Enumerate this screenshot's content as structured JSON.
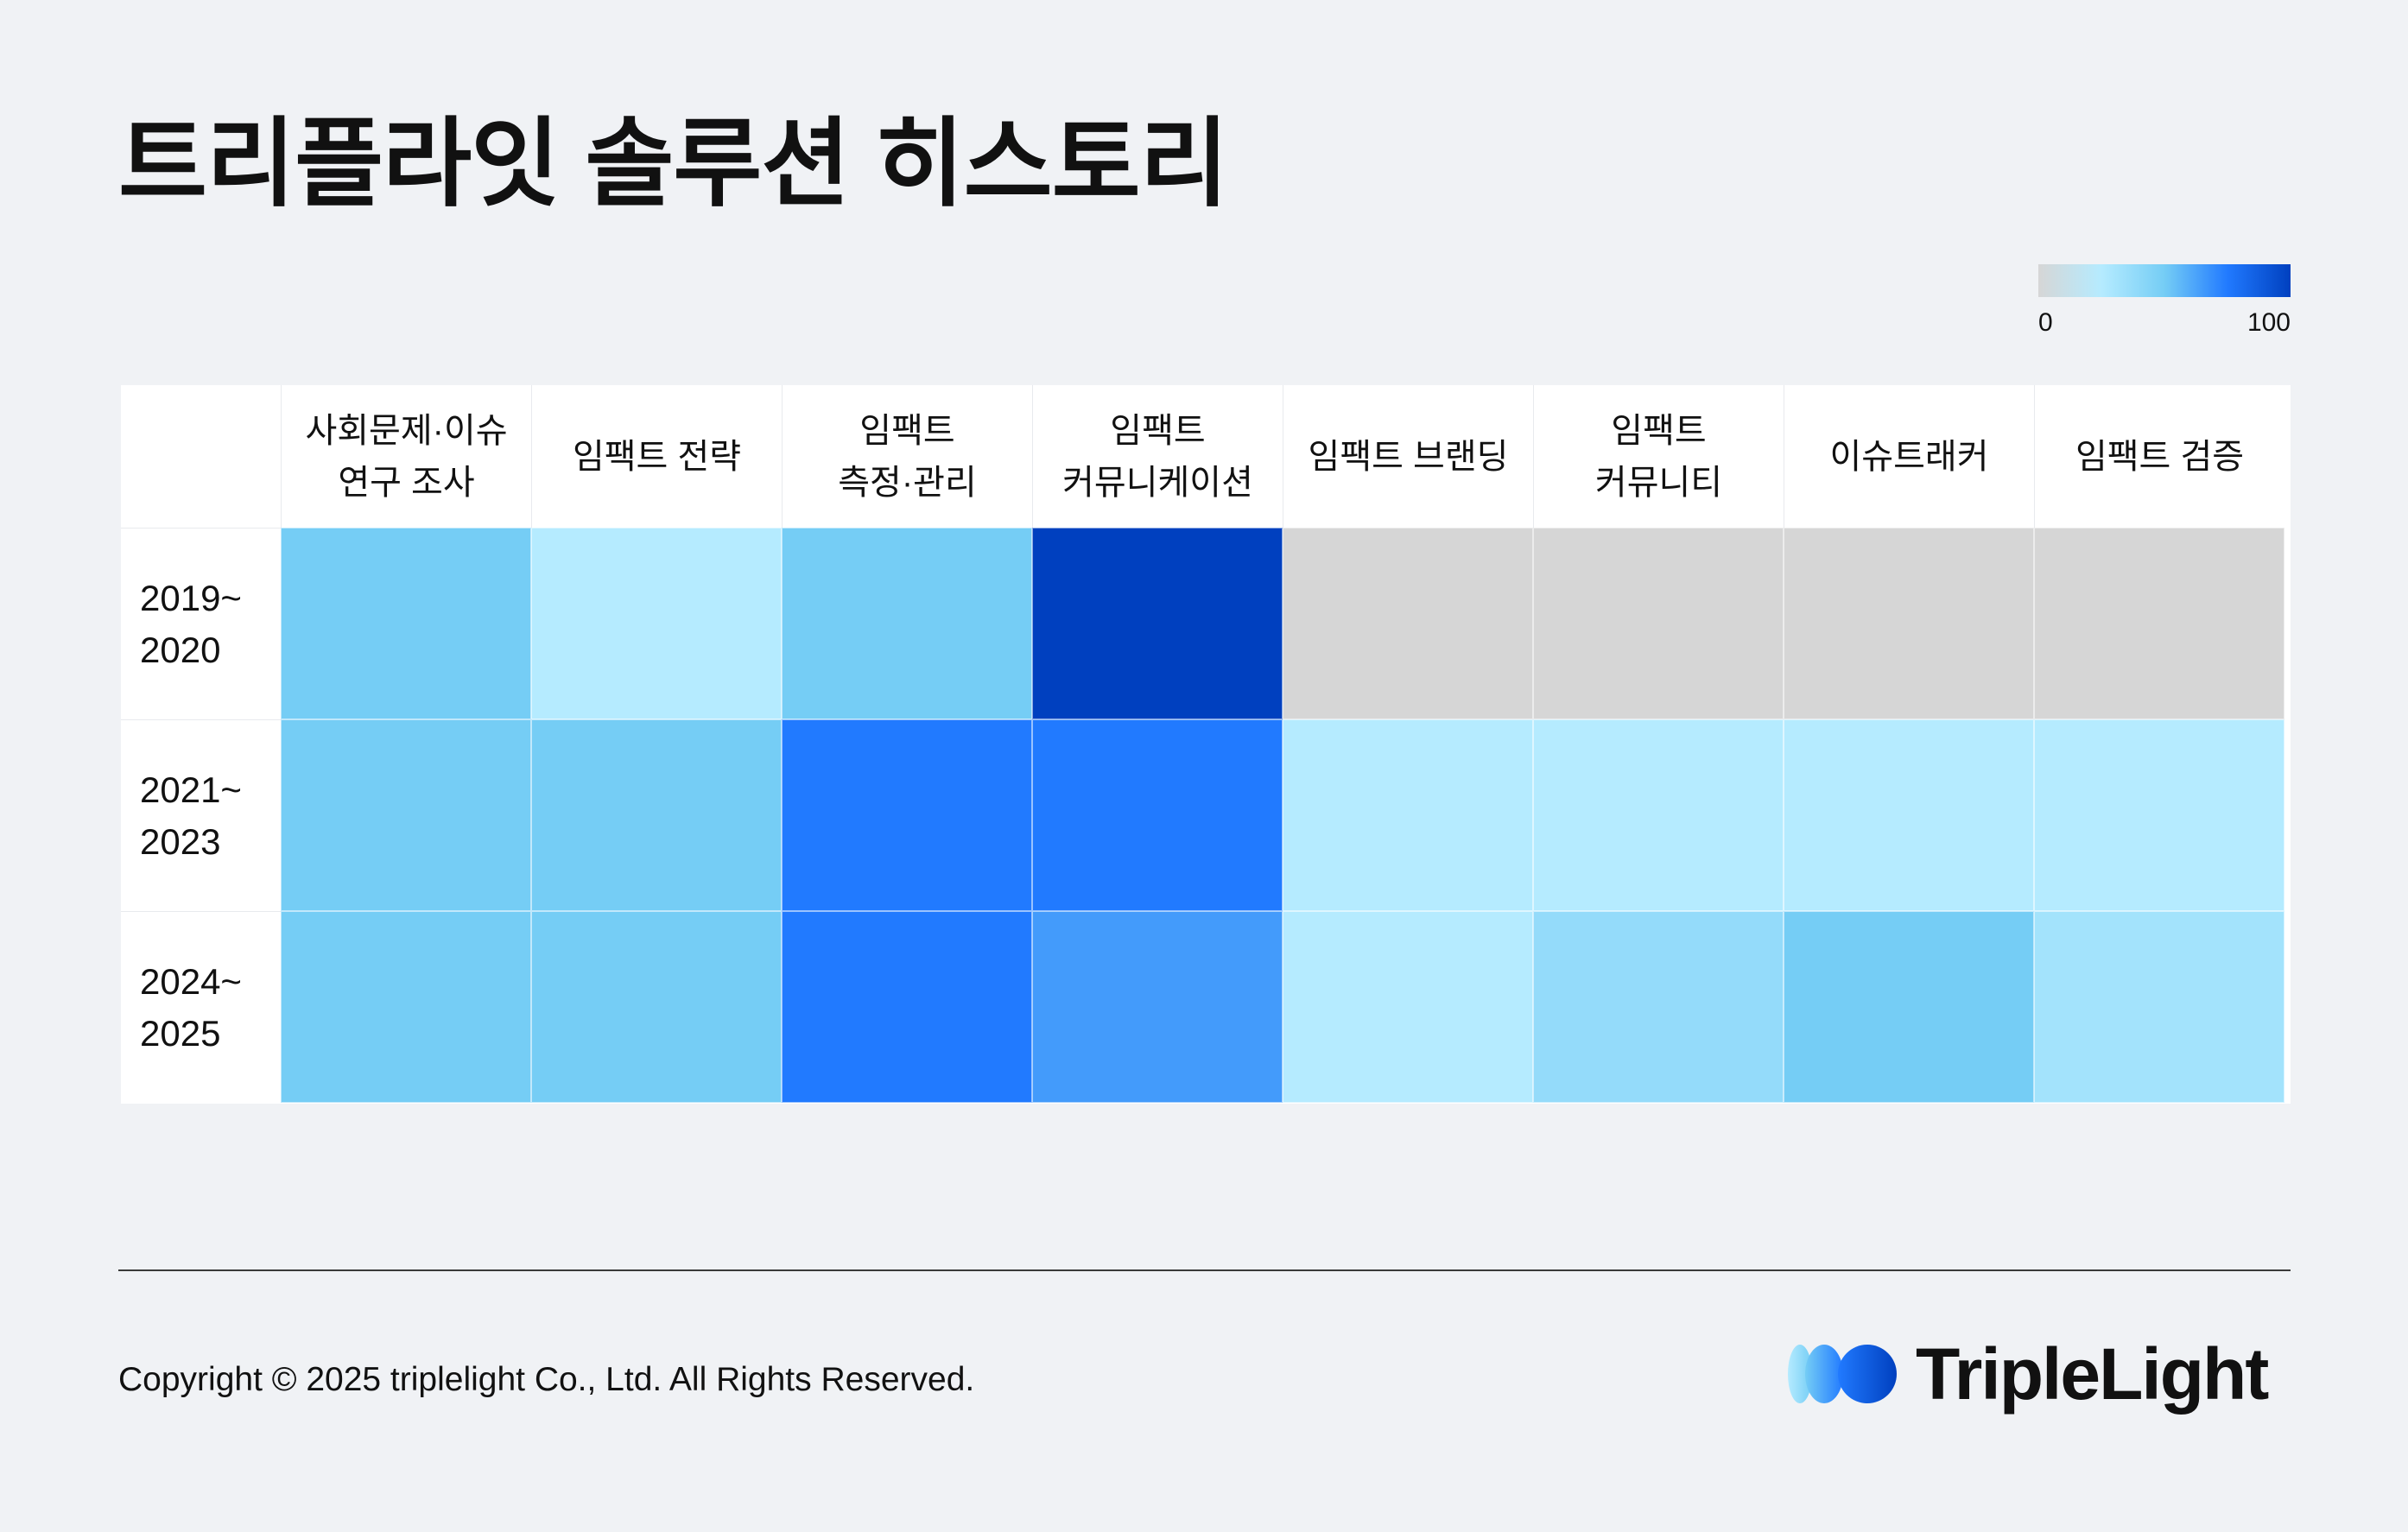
{
  "title": "트리플라잇 솔루션 히스토리",
  "legend": {
    "min_label": "0",
    "max_label": "100",
    "gradient_colors": [
      "#d6d6d6",
      "#b5ebff",
      "#75cdf5",
      "#217aff",
      "#0040bf"
    ]
  },
  "chart_data": {
    "type": "heatmap",
    "title": "트리플라잇 솔루션 히스토리",
    "columns": [
      "사회문제·이슈\n연구 조사",
      "임팩트 전략",
      "임팩트\n측정·관리",
      "임팩트\n커뮤니케이션",
      "임팩트 브랜딩",
      "임팩트\n커뮤니티",
      "이슈트래커",
      "임팩트 검증"
    ],
    "rows": [
      "2019~\n2020",
      "2021~\n2023",
      "2024~\n2025"
    ],
    "values": [
      [
        50,
        25,
        50,
        100,
        0,
        0,
        0,
        0
      ],
      [
        50,
        50,
        75,
        75,
        25,
        25,
        25,
        25
      ],
      [
        50,
        50,
        75,
        65,
        25,
        38,
        50,
        32
      ]
    ],
    "vmin": 0,
    "vmax": 100,
    "colorscale": [
      "#d6d6d6",
      "#b5ebff",
      "#75cdf5",
      "#217aff",
      "#0040bf"
    ]
  },
  "footer": {
    "copyright": "Copyright © 2025 triplelight Co., Ltd. All Rights Reserved."
  },
  "logo": {
    "text": "TripleLight",
    "mark_icon": "triplelight-logo-mark-icon"
  }
}
